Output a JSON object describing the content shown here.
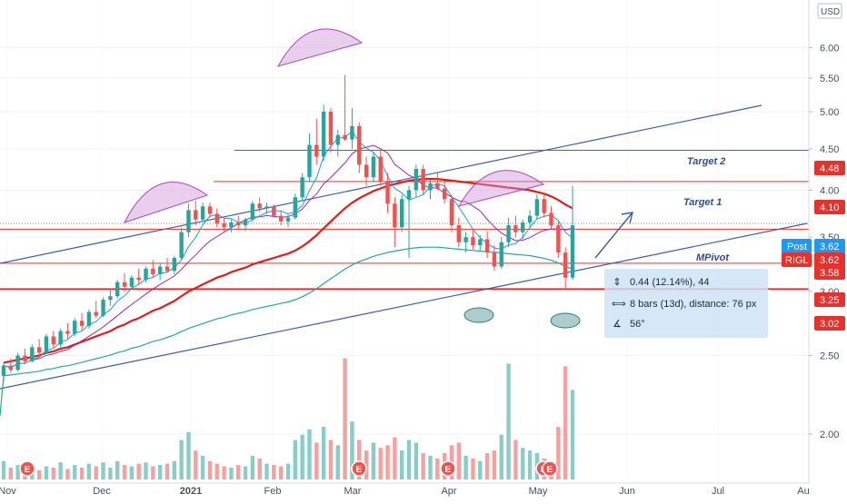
{
  "currency": "USD",
  "chart_data": {
    "type": "candlestick",
    "ticker_label": "RIGL",
    "post_label": "Post",
    "y_ticks": [
      "2.00",
      "2.50",
      "3.00",
      "3.50",
      "4.00",
      "4.50",
      "5.00",
      "5.50",
      "6.00"
    ],
    "x_ticks": [
      "Nov",
      "Dec",
      "2021",
      "Feb",
      "Mar",
      "Apr",
      "May",
      "Jun",
      "Jul",
      "Au"
    ],
    "price_badges": [
      {
        "value": "4.48",
        "kind": "level"
      },
      {
        "value": "4.10",
        "kind": "level"
      },
      {
        "value": "3.62",
        "kind": "post"
      },
      {
        "value": "3.62",
        "kind": "ticker"
      },
      {
        "value": "3.58",
        "kind": "level"
      },
      {
        "value": "3.25",
        "kind": "level"
      },
      {
        "value": "3.02",
        "kind": "level"
      }
    ],
    "annotations": [
      {
        "text": "Target 2"
      },
      {
        "text": "Target 1"
      },
      {
        "text": "MPivot"
      }
    ],
    "earnings_marker": "E",
    "measure": {
      "price_change": "0.44 (12.14%), 44",
      "bars": "8 bars (13d), distance: 76 px",
      "angle": "56°"
    },
    "ohlc": [
      [
        2.36,
        2.45,
        2.32,
        2.43
      ],
      [
        2.43,
        2.48,
        2.38,
        2.4
      ],
      [
        2.4,
        2.52,
        2.39,
        2.5
      ],
      [
        2.5,
        2.55,
        2.44,
        2.46
      ],
      [
        2.46,
        2.58,
        2.45,
        2.56
      ],
      [
        2.56,
        2.62,
        2.5,
        2.52
      ],
      [
        2.52,
        2.66,
        2.51,
        2.64
      ],
      [
        2.64,
        2.68,
        2.55,
        2.58
      ],
      [
        2.58,
        2.7,
        2.56,
        2.68
      ],
      [
        2.68,
        2.74,
        2.62,
        2.66
      ],
      [
        2.66,
        2.78,
        2.64,
        2.76
      ],
      [
        2.76,
        2.82,
        2.68,
        2.72
      ],
      [
        2.72,
        2.85,
        2.7,
        2.83
      ],
      [
        2.83,
        2.92,
        2.78,
        2.8
      ],
      [
        2.8,
        2.95,
        2.79,
        2.93
      ],
      [
        2.93,
        3.02,
        2.88,
        2.96
      ],
      [
        2.96,
        3.1,
        2.94,
        3.08
      ],
      [
        3.08,
        3.16,
        3.0,
        3.04
      ],
      [
        3.04,
        3.14,
        3.02,
        3.12
      ],
      [
        3.12,
        3.2,
        3.06,
        3.1
      ],
      [
        3.1,
        3.22,
        3.08,
        3.2
      ],
      [
        3.2,
        3.28,
        3.12,
        3.15
      ],
      [
        3.15,
        3.25,
        3.1,
        3.22
      ],
      [
        3.22,
        3.3,
        3.16,
        3.18
      ],
      [
        3.18,
        3.32,
        3.15,
        3.3
      ],
      [
        3.3,
        3.6,
        3.28,
        3.55
      ],
      [
        3.55,
        3.85,
        3.5,
        3.78
      ],
      [
        3.78,
        3.88,
        3.62,
        3.68
      ],
      [
        3.68,
        3.86,
        3.66,
        3.82
      ],
      [
        3.82,
        3.86,
        3.7,
        3.74
      ],
      [
        3.74,
        3.8,
        3.6,
        3.64
      ],
      [
        3.64,
        3.7,
        3.56,
        3.6
      ],
      [
        3.6,
        3.68,
        3.55,
        3.65
      ],
      [
        3.65,
        3.72,
        3.58,
        3.62
      ],
      [
        3.62,
        3.7,
        3.56,
        3.68
      ],
      [
        3.68,
        3.88,
        3.66,
        3.85
      ],
      [
        3.85,
        3.92,
        3.76,
        3.8
      ],
      [
        3.8,
        3.86,
        3.74,
        3.82
      ],
      [
        3.82,
        3.84,
        3.7,
        3.72
      ],
      [
        3.72,
        3.78,
        3.62,
        3.66
      ],
      [
        3.66,
        3.74,
        3.6,
        3.7
      ],
      [
        3.7,
        3.96,
        3.68,
        3.92
      ],
      [
        3.92,
        4.2,
        3.88,
        4.15
      ],
      [
        4.15,
        4.7,
        4.1,
        4.55
      ],
      [
        4.55,
        4.9,
        4.3,
        4.4
      ],
      [
        4.4,
        5.1,
        4.35,
        5.0
      ],
      [
        5.0,
        5.05,
        4.45,
        4.55
      ],
      [
        4.55,
        4.75,
        4.4,
        4.68
      ],
      [
        4.68,
        5.55,
        4.6,
        4.62
      ],
      [
        4.62,
        5.05,
        4.5,
        4.8
      ],
      [
        4.8,
        4.85,
        4.2,
        4.3
      ],
      [
        4.3,
        4.4,
        4.05,
        4.15
      ],
      [
        4.15,
        4.45,
        4.1,
        4.4
      ],
      [
        4.4,
        4.48,
        4.05,
        4.1
      ],
      [
        4.1,
        4.2,
        3.75,
        3.85
      ],
      [
        3.85,
        3.92,
        3.4,
        3.6
      ],
      [
        3.6,
        3.95,
        3.55,
        3.9
      ],
      [
        3.9,
        4.05,
        3.3,
        4.0
      ],
      [
        4.0,
        4.3,
        3.92,
        4.25
      ],
      [
        4.25,
        4.3,
        3.95,
        4.0
      ],
      [
        4.0,
        4.12,
        3.9,
        4.08
      ],
      [
        4.08,
        4.2,
        4.0,
        4.02
      ],
      [
        4.02,
        4.1,
        3.85,
        3.9
      ],
      [
        3.9,
        3.95,
        3.55,
        3.62
      ],
      [
        3.62,
        3.7,
        3.4,
        3.45
      ],
      [
        3.45,
        3.55,
        3.35,
        3.5
      ],
      [
        3.5,
        3.58,
        3.38,
        3.42
      ],
      [
        3.42,
        3.52,
        3.36,
        3.48
      ],
      [
        3.48,
        3.56,
        3.3,
        3.35
      ],
      [
        3.35,
        3.42,
        3.18,
        3.22
      ],
      [
        3.22,
        3.5,
        3.2,
        3.45
      ],
      [
        3.45,
        3.7,
        3.4,
        3.62
      ],
      [
        3.62,
        3.72,
        3.5,
        3.55
      ],
      [
        3.55,
        3.68,
        3.48,
        3.65
      ],
      [
        3.65,
        3.78,
        3.58,
        3.72
      ],
      [
        3.72,
        3.95,
        3.68,
        3.9
      ],
      [
        3.9,
        3.96,
        3.7,
        3.75
      ],
      [
        3.75,
        3.82,
        3.58,
        3.62
      ],
      [
        3.62,
        3.66,
        3.3,
        3.35
      ],
      [
        3.35,
        3.4,
        3.02,
        3.12
      ],
      [
        3.12,
        4.05,
        3.1,
        3.62
      ]
    ],
    "volume": [
      0.14,
      0.09,
      0.11,
      0.08,
      0.12,
      0.07,
      0.1,
      0.09,
      0.13,
      0.08,
      0.11,
      0.09,
      0.12,
      0.1,
      0.13,
      0.09,
      0.14,
      0.11,
      0.1,
      0.12,
      0.13,
      0.1,
      0.11,
      0.12,
      0.14,
      0.3,
      0.36,
      0.22,
      0.18,
      0.14,
      0.12,
      0.1,
      0.09,
      0.11,
      0.1,
      0.18,
      0.16,
      0.12,
      0.11,
      0.1,
      0.12,
      0.3,
      0.34,
      0.38,
      0.28,
      0.4,
      0.3,
      0.26,
      0.92,
      0.44,
      0.3,
      0.22,
      0.28,
      0.24,
      0.26,
      0.32,
      0.22,
      0.3,
      0.28,
      0.2,
      0.18,
      0.16,
      0.2,
      0.26,
      0.28,
      0.18,
      0.16,
      0.14,
      0.2,
      0.22,
      0.34,
      0.88,
      0.3,
      0.24,
      0.22,
      0.2,
      0.16,
      0.14,
      0.4,
      0.86,
      0.68
    ],
    "ma_slow": [
      2.45,
      2.46,
      2.47,
      2.48,
      2.49,
      2.5,
      2.52,
      2.53,
      2.55,
      2.56,
      2.58,
      2.6,
      2.62,
      2.64,
      2.66,
      2.68,
      2.71,
      2.73,
      2.76,
      2.78,
      2.81,
      2.84,
      2.86,
      2.89,
      2.92,
      2.96,
      3.0,
      3.03,
      3.06,
      3.09,
      3.12,
      3.14,
      3.17,
      3.19,
      3.21,
      3.24,
      3.26,
      3.28,
      3.3,
      3.32,
      3.34,
      3.37,
      3.41,
      3.46,
      3.52,
      3.59,
      3.66,
      3.73,
      3.8,
      3.86,
      3.91,
      3.95,
      3.99,
      4.02,
      4.05,
      4.07,
      4.09,
      4.11,
      4.12,
      4.13,
      4.13,
      4.13,
      4.12,
      4.11,
      4.1,
      4.09,
      4.08,
      4.07,
      4.06,
      4.05,
      4.04,
      4.03,
      4.02,
      4.01,
      4.0,
      3.98,
      3.96,
      3.93,
      3.89,
      3.84,
      3.8
    ]
  }
}
